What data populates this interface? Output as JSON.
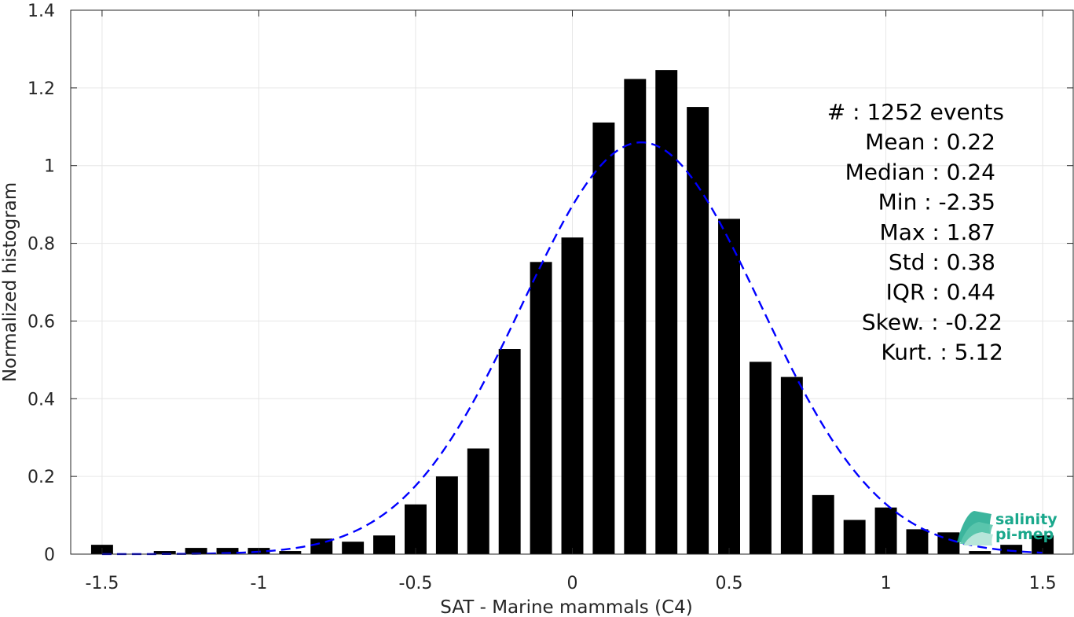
{
  "chart_data": {
    "type": "bar",
    "xlabel": "SAT - Marine mammals (C4)",
    "ylabel": "Normalized histogram",
    "xlim": [
      -1.6,
      1.6
    ],
    "ylim": [
      0,
      1.4
    ],
    "xticks": [
      -1.5,
      -1,
      -0.5,
      0,
      0.5,
      1,
      1.5
    ],
    "xtick_labels": [
      "-1.5",
      "-1",
      "-0.5",
      "0",
      "0.5",
      "1",
      "1.5"
    ],
    "yticks": [
      0,
      0.2,
      0.4,
      0.6,
      0.8,
      1,
      1.2,
      1.4
    ],
    "ytick_labels": [
      "0",
      "0.2",
      "0.4",
      "0.6",
      "0.8",
      "1",
      "1.2",
      "1.4"
    ],
    "grid": true,
    "bar_width": 0.07,
    "bars": {
      "x": [
        -1.5,
        -1.4,
        -1.3,
        -1.2,
        -1.1,
        -1.0,
        -0.9,
        -0.8,
        -0.7,
        -0.6,
        -0.5,
        -0.4,
        -0.3,
        -0.2,
        -0.1,
        0.0,
        0.1,
        0.2,
        0.3,
        0.4,
        0.5,
        0.6,
        0.7,
        0.8,
        0.9,
        1.0,
        1.1,
        1.2,
        1.3,
        1.4,
        1.5
      ],
      "values": [
        0.024,
        0.0,
        0.008,
        0.016,
        0.016,
        0.016,
        0.008,
        0.04,
        0.032,
        0.048,
        0.128,
        0.2,
        0.272,
        0.528,
        0.752,
        0.815,
        1.111,
        1.223,
        1.246,
        1.151,
        0.863,
        0.495,
        0.456,
        0.152,
        0.088,
        0.12,
        0.064,
        0.056,
        0.008,
        0.024,
        0.048
      ],
      "color": "#000000"
    },
    "fit": {
      "kind": "gaussian",
      "mean": 0.22,
      "std": 0.38,
      "peak": 1.06,
      "color": "#0000ff",
      "style": "dashed"
    },
    "stats": [
      {
        "label": "#  : 1252 events"
      },
      {
        "label": "Mean : 0.22"
      },
      {
        "label": "Median : 0.24"
      },
      {
        "label": "Min : -2.35"
      },
      {
        "label": "Max : 1.87"
      },
      {
        "label": "Std : 0.38"
      },
      {
        "label": "IQR : 0.44"
      },
      {
        "label": "Skew. : -0.22"
      },
      {
        "label": "Kurt. : 5.12"
      }
    ]
  },
  "logo": {
    "line1": "salinity",
    "line2": "pi-mep",
    "color": "#1aa88c"
  }
}
